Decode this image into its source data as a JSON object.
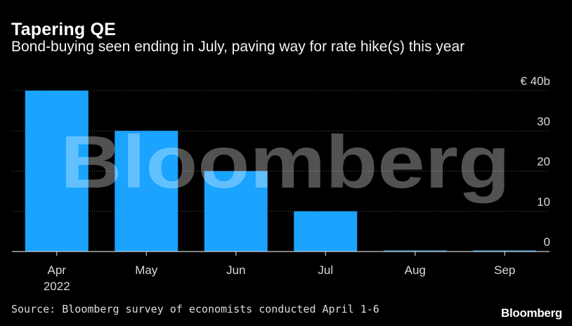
{
  "header": {
    "title": "Tapering QE",
    "subtitle": "Bond-buying seen ending in July, paving way for rate hike(s) this year"
  },
  "footer": {
    "source": "Source: Bloomberg survey of economists conducted April 1-6",
    "brand": "Bloomberg"
  },
  "watermark": {
    "text": "Bloomberg"
  },
  "colors": {
    "background": "#000000",
    "bar": "#1aa3ff",
    "grid": "#555555",
    "text": "#ffffff"
  },
  "chart_data": {
    "type": "bar",
    "title": "Tapering QE",
    "subtitle": "Bond-buying seen ending in July, paving way for rate hike(s) this year",
    "categories": [
      "Apr",
      "May",
      "Jun",
      "Jul",
      "Aug",
      "Sep"
    ],
    "x_tick_labels": [
      {
        "main": "Apr",
        "sub": "2022"
      },
      {
        "main": "May",
        "sub": ""
      },
      {
        "main": "Jun",
        "sub": ""
      },
      {
        "main": "Jul",
        "sub": ""
      },
      {
        "main": "Aug",
        "sub": ""
      },
      {
        "main": "Sep",
        "sub": ""
      }
    ],
    "values": [
      40,
      30,
      20,
      10,
      0,
      0
    ],
    "ylim": [
      0,
      40
    ],
    "y_ticks": [
      0,
      10,
      20,
      30,
      40
    ],
    "y_tick_labels": [
      "0",
      "10",
      "20",
      "30",
      "€ 40b"
    ],
    "xlabel": "",
    "ylabel": "",
    "unit": "€ billions",
    "grid": true,
    "y_axis_position": "right"
  }
}
